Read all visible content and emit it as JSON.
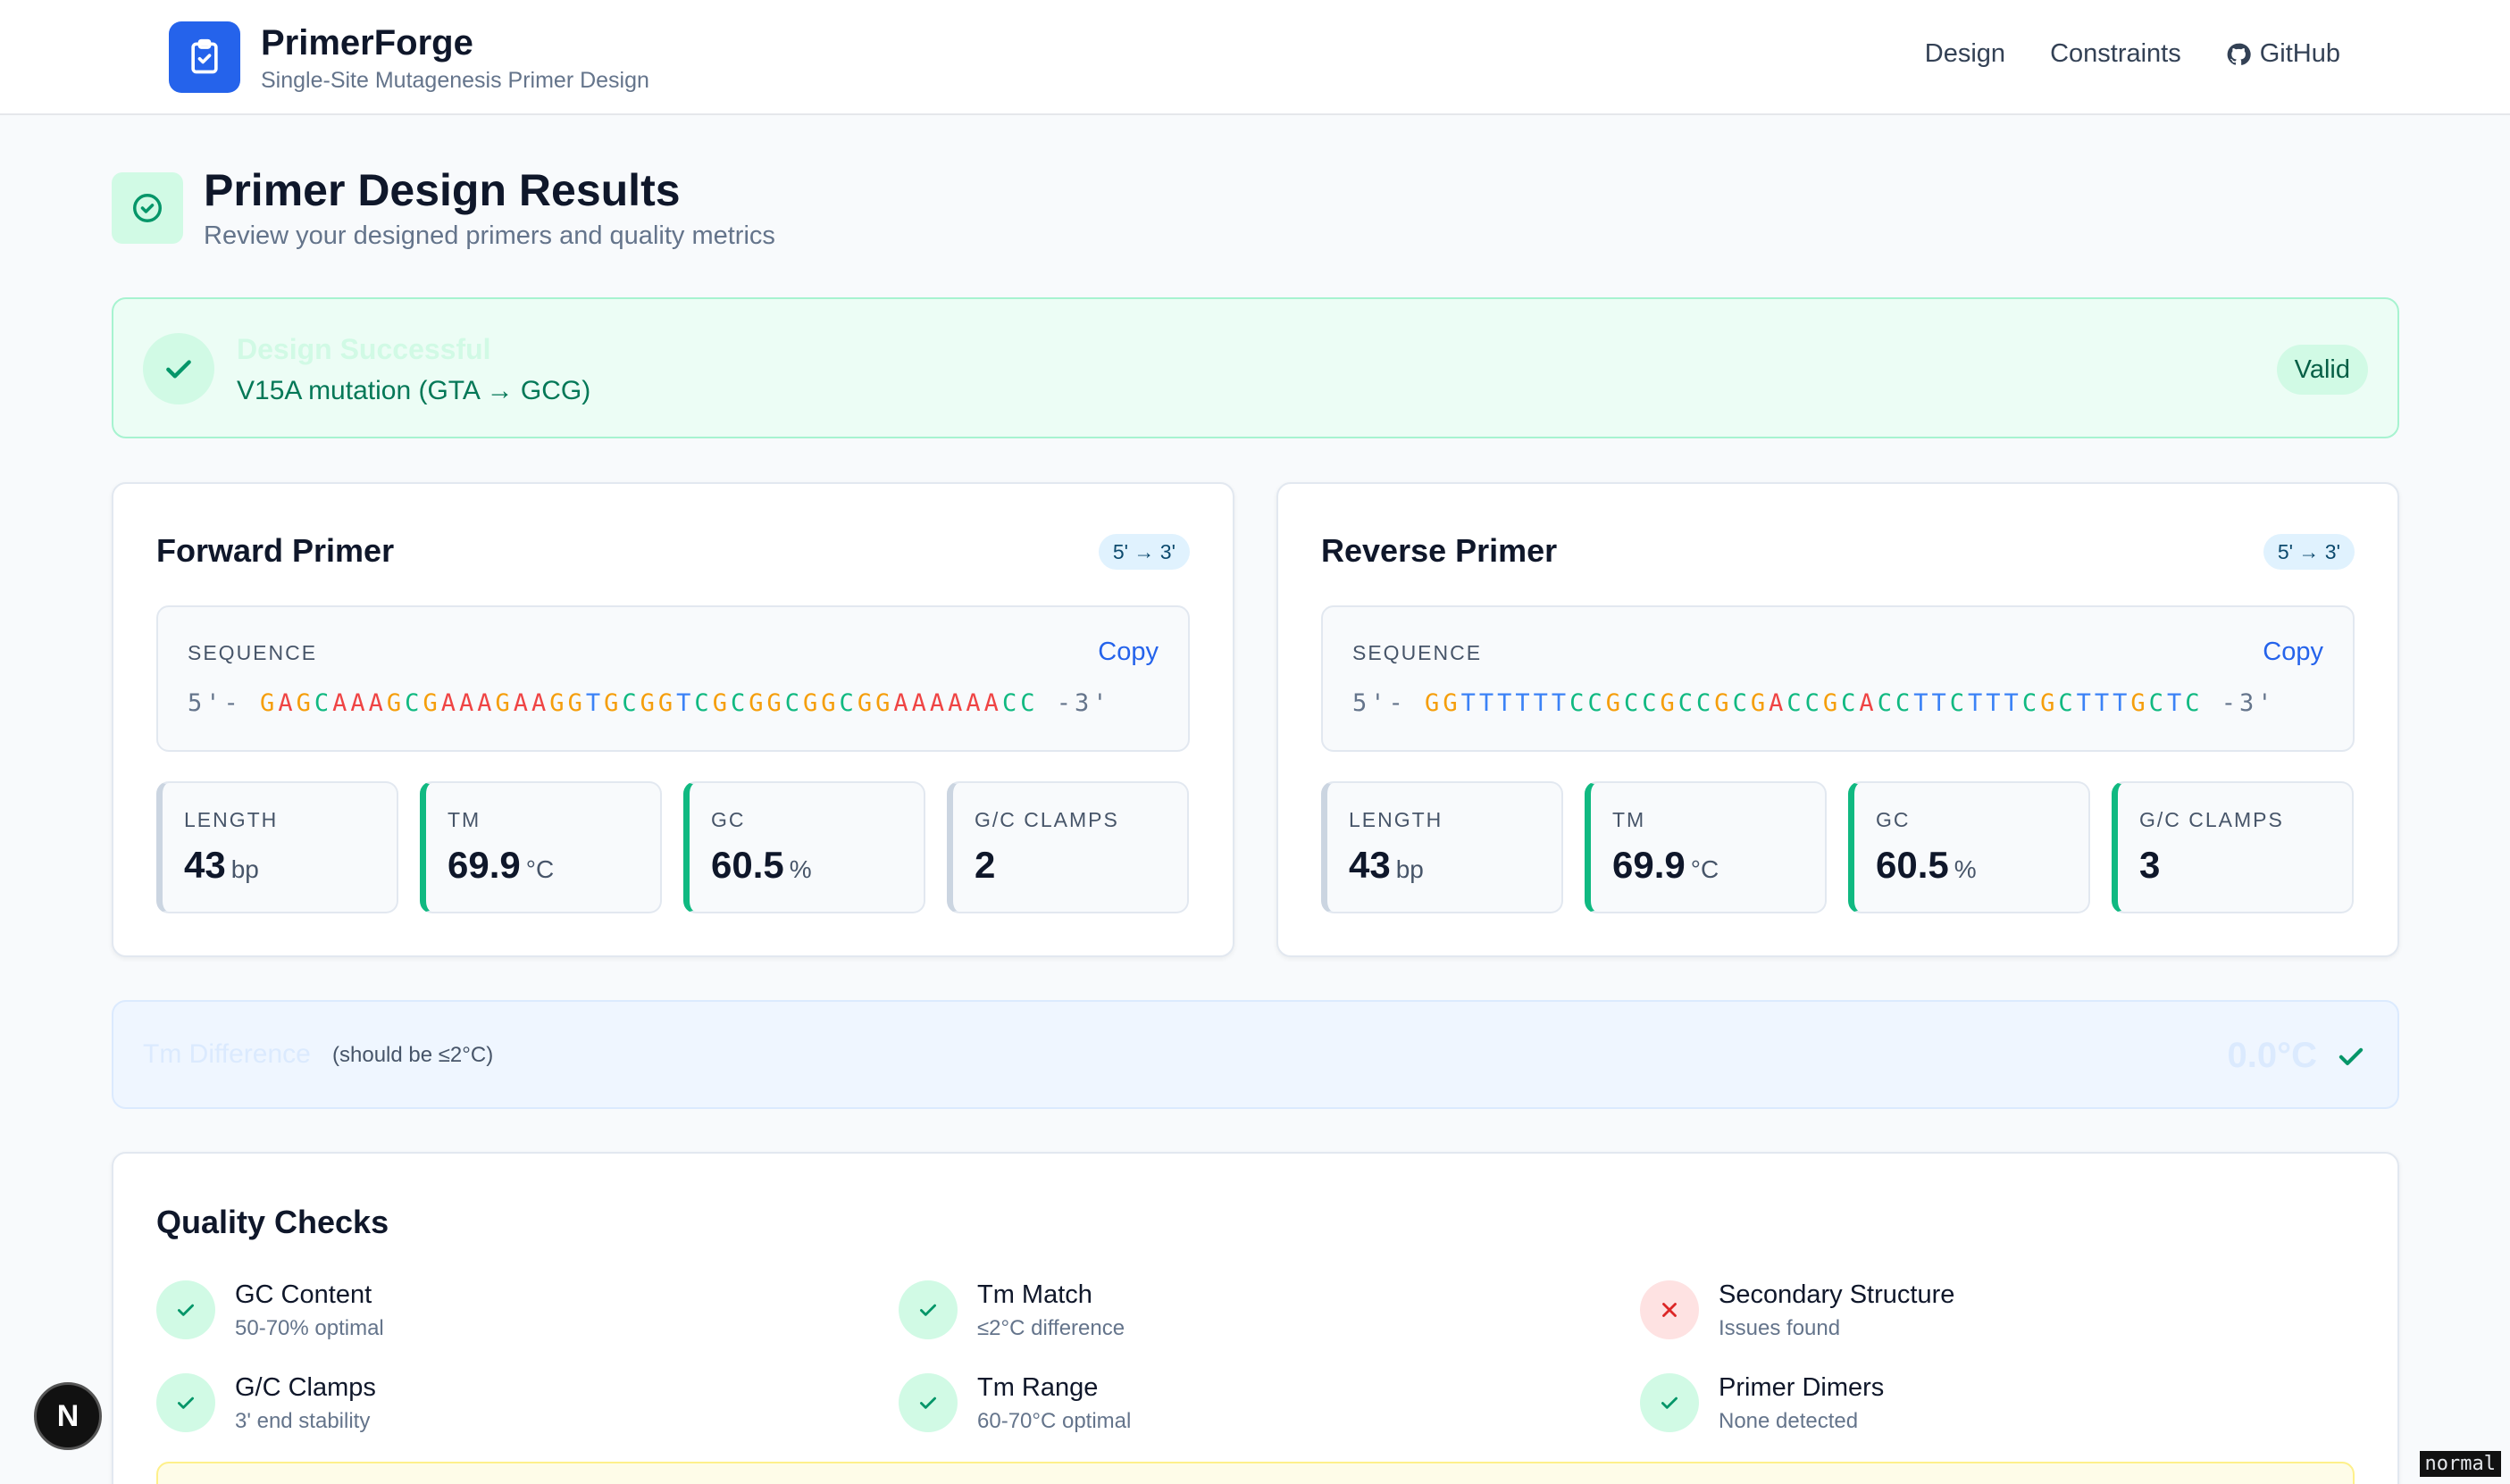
{
  "header": {
    "brand": "PrimerForge",
    "subtitle": "Single-Site Mutagenesis Primer Design",
    "logo_icon": "clipboard-check-icon",
    "nav": [
      {
        "label": "Design"
      },
      {
        "label": "Constraints"
      },
      {
        "label": "GitHub",
        "icon": "github-icon"
      }
    ]
  },
  "page": {
    "title": "Primer Design Results",
    "subtitle": "Review your designed primers and quality metrics"
  },
  "banner": {
    "title": "Design Successful",
    "mutation": "V15A mutation (GTA → GCG)",
    "status": "Valid"
  },
  "forward": {
    "title": "Forward Primer",
    "direction": "5' → 3'",
    "seq_label": "SEQUENCE",
    "copy_label": "Copy",
    "prefix": "5'-",
    "sequence": "GAGCAAAGCGAAAGAAGGTGCGGTCGCGGCGGCGGAAAAAACC",
    "suffix": "-3'",
    "metrics": [
      {
        "label": "LENGTH",
        "value": "43",
        "unit": "bp"
      },
      {
        "label": "TM",
        "value": "69.9",
        "unit": "°C"
      },
      {
        "label": "GC",
        "value": "60.5",
        "unit": "%"
      },
      {
        "label": "G/C CLAMPS",
        "value": "2",
        "unit": ""
      }
    ]
  },
  "reverse": {
    "title": "Reverse Primer",
    "direction": "5' → 3'",
    "seq_label": "SEQUENCE",
    "copy_label": "Copy",
    "prefix": "5'-",
    "sequence": "GGTTTTTTCCGCCGCCGCGACCGCACCTTCTTTCGCTTTGCTC",
    "suffix": "-3'",
    "metrics": [
      {
        "label": "LENGTH",
        "value": "43",
        "unit": "bp"
      },
      {
        "label": "TM",
        "value": "69.9",
        "unit": "°C"
      },
      {
        "label": "GC",
        "value": "60.5",
        "unit": "%"
      },
      {
        "label": "G/C CLAMPS",
        "value": "3",
        "unit": ""
      }
    ]
  },
  "tm_difference": {
    "label": "Tm Difference",
    "hint": "(should be ≤2°C)",
    "value": "0.0°C"
  },
  "quality": {
    "title": "Quality Checks",
    "checks": [
      {
        "name": "GC Content",
        "desc": "50-70% optimal",
        "ok": true
      },
      {
        "name": "Tm Match",
        "desc": "≤2°C difference",
        "ok": true
      },
      {
        "name": "Secondary Structure",
        "desc": "Issues found",
        "ok": false
      },
      {
        "name": "G/C Clamps",
        "desc": "3' end stability",
        "ok": true
      },
      {
        "name": "Tm Range",
        "desc": "60-70°C optimal",
        "ok": true
      },
      {
        "name": "Primer Dimers",
        "desc": "None detected",
        "ok": true
      }
    ]
  },
  "overlay": {
    "next_badge": "N",
    "mode": "normal"
  },
  "colors": {
    "accent": "#2563eb",
    "success": "#10b981",
    "error": "#ef4444",
    "base_A": "#ef4444",
    "base_G": "#f59e0b",
    "base_C": "#10b981",
    "base_T": "#3b82f6"
  }
}
